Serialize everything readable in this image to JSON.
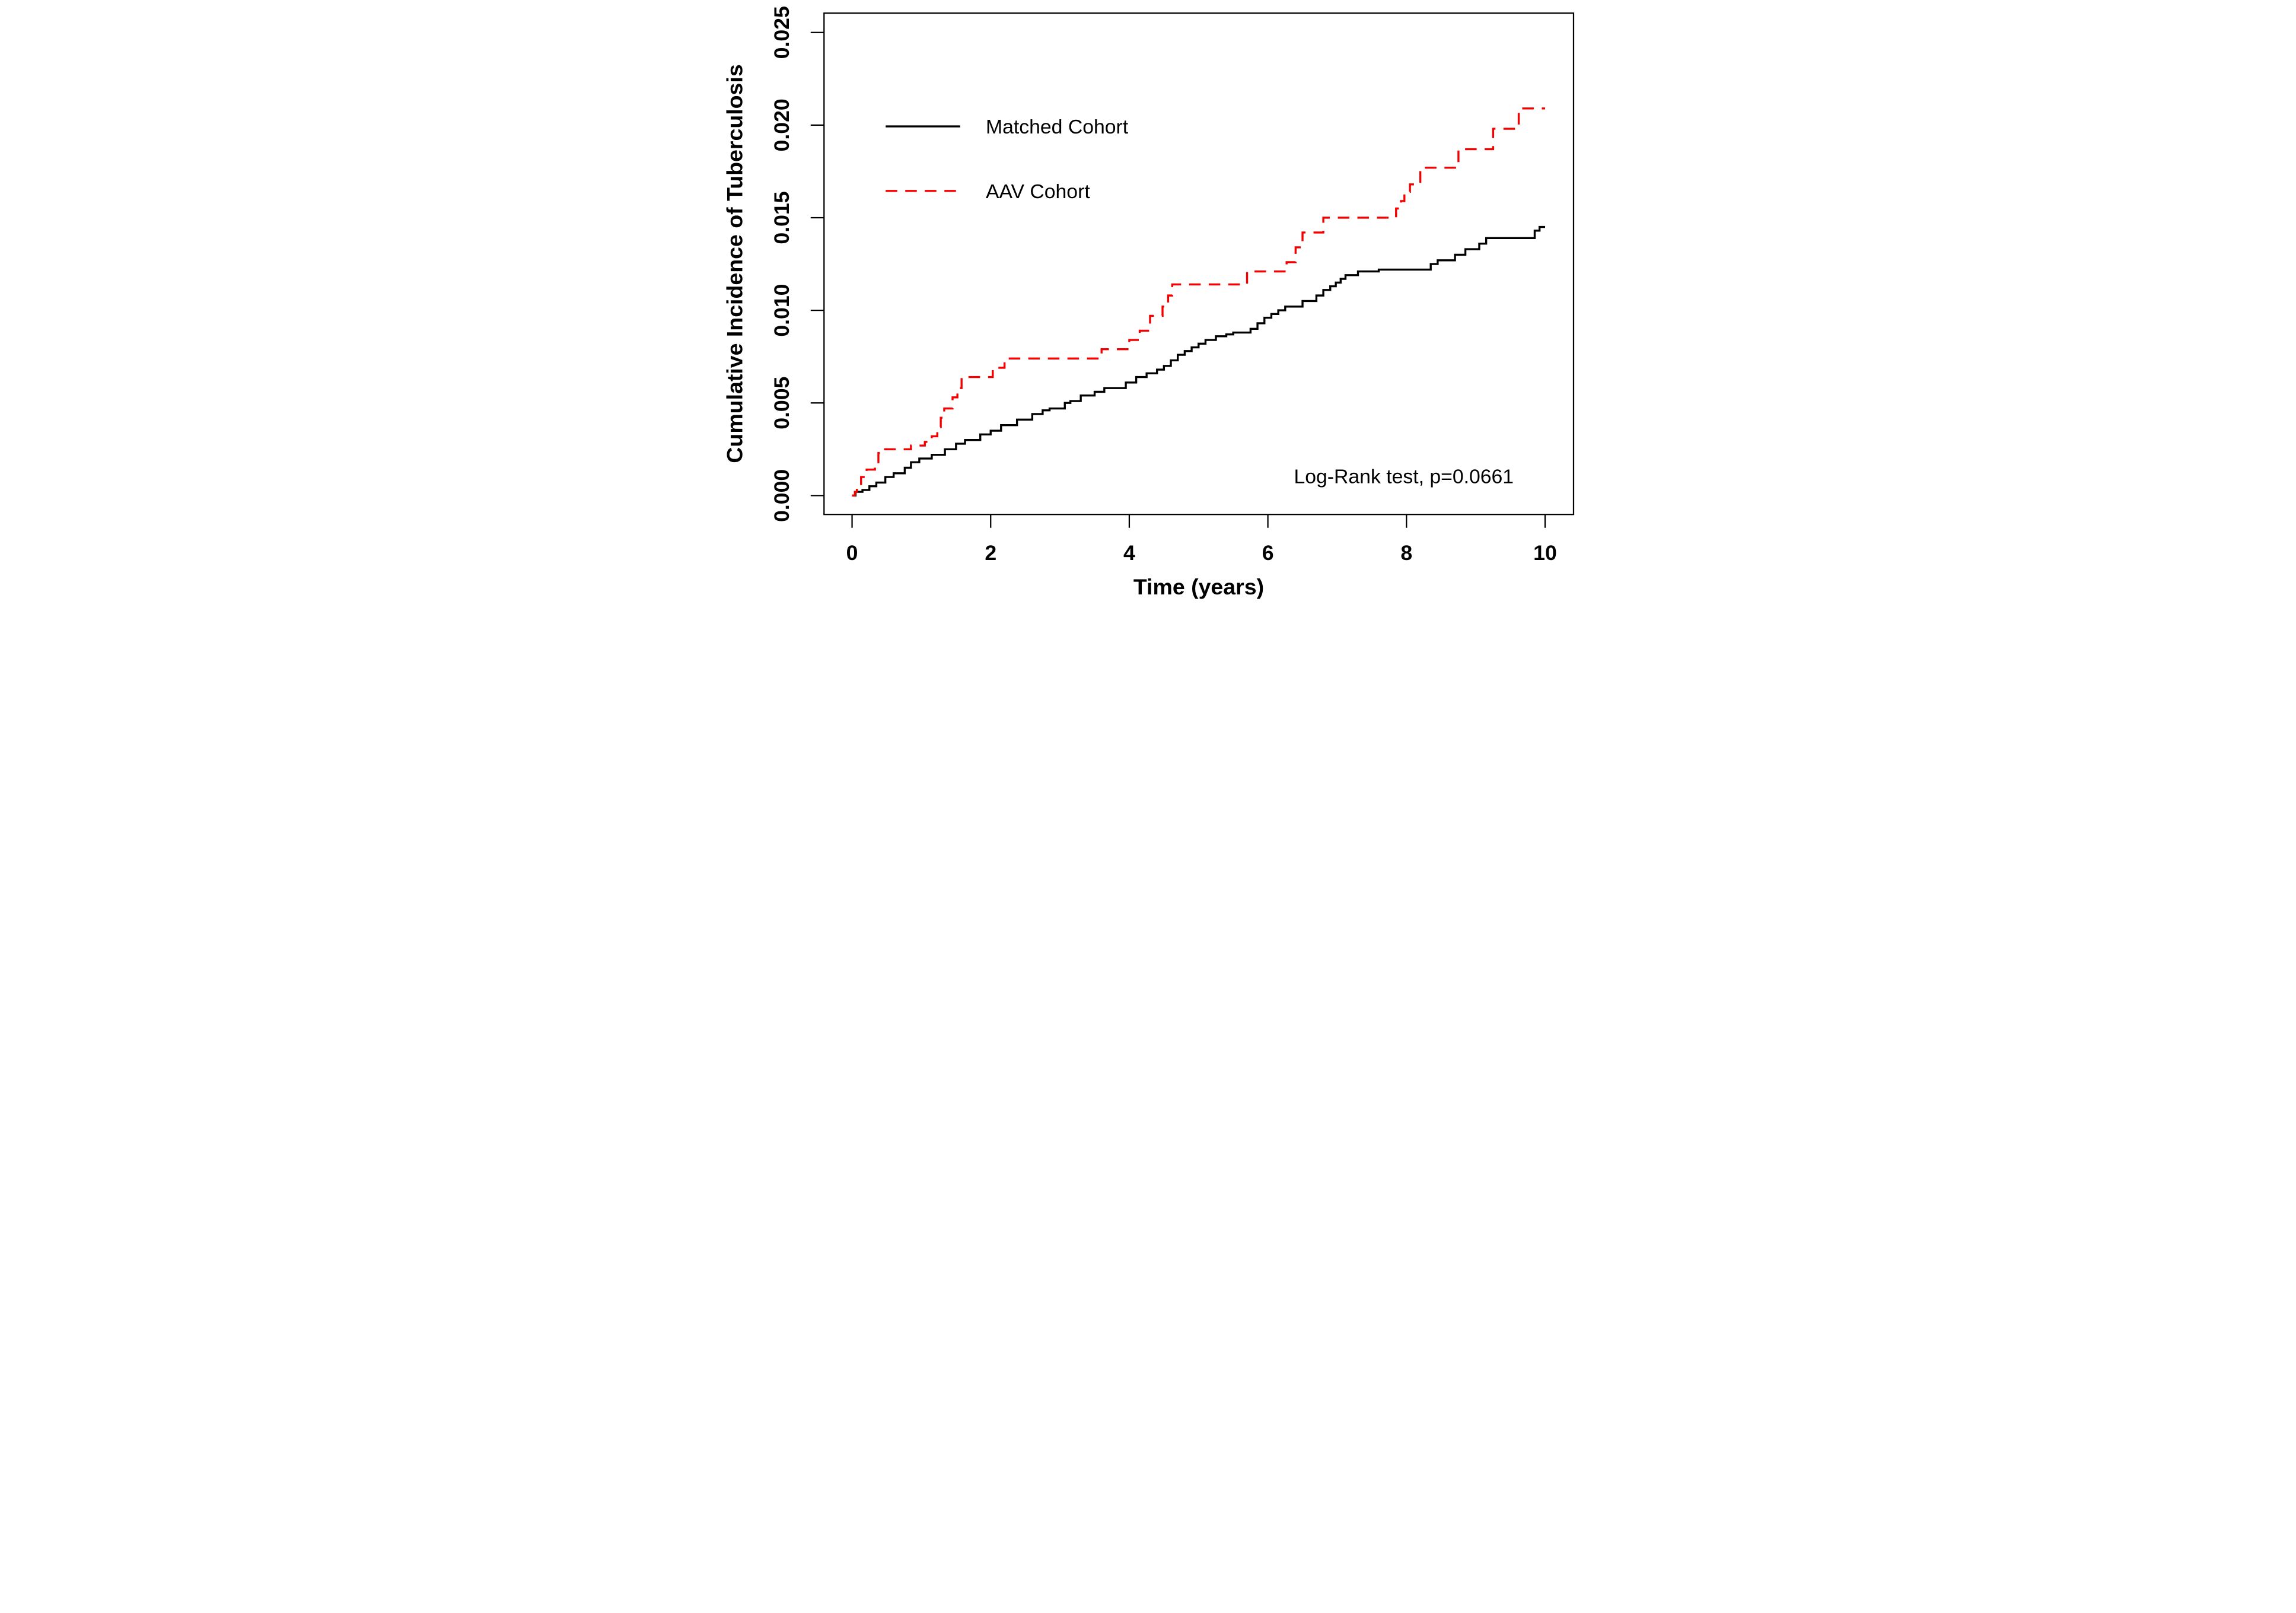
{
  "chart_data": {
    "type": "line",
    "subtype": "step-cumulative-incidence",
    "title": "",
    "xlabel": "Time (years)",
    "ylabel": "Cumulative Incidence of Tuberculosis",
    "xlim": [
      0,
      10
    ],
    "ylim": [
      0,
      0.025
    ],
    "grid": false,
    "legend_position": "upper-left-inside",
    "annotation": "Log-Rank test, p=0.0661",
    "x_ticks": {
      "values": [
        0,
        2,
        4,
        6,
        8,
        10
      ],
      "labels": [
        "0",
        "2",
        "4",
        "6",
        "8",
        "10"
      ]
    },
    "y_ticks": {
      "values": [
        0,
        0.005,
        0.01,
        0.015,
        0.02,
        0.025
      ],
      "labels": [
        "0.000",
        "0.005",
        "0.010",
        "0.015",
        "0.020",
        "0.025"
      ]
    },
    "series": [
      {
        "name": "Matched Cohort",
        "color": "#000000",
        "style": "solid",
        "points": [
          [
            0,
            0
          ],
          [
            0.05,
            0.0002
          ],
          [
            0.15,
            0.0003
          ],
          [
            0.25,
            0.0005
          ],
          [
            0.35,
            0.0007
          ],
          [
            0.48,
            0.001
          ],
          [
            0.6,
            0.0012
          ],
          [
            0.76,
            0.0015
          ],
          [
            0.85,
            0.0018
          ],
          [
            0.97,
            0.002
          ],
          [
            1.15,
            0.0022
          ],
          [
            1.34,
            0.0025
          ],
          [
            1.5,
            0.0028
          ],
          [
            1.63,
            0.003
          ],
          [
            1.85,
            0.0033
          ],
          [
            2.0,
            0.0035
          ],
          [
            2.15,
            0.0038
          ],
          [
            2.38,
            0.0041
          ],
          [
            2.6,
            0.0044
          ],
          [
            2.75,
            0.0046
          ],
          [
            2.85,
            0.0047
          ],
          [
            3.07,
            0.005
          ],
          [
            3.15,
            0.0051
          ],
          [
            3.3,
            0.0054
          ],
          [
            3.5,
            0.0056
          ],
          [
            3.64,
            0.0058
          ],
          [
            3.95,
            0.0061
          ],
          [
            4.1,
            0.0064
          ],
          [
            4.25,
            0.0066
          ],
          [
            4.4,
            0.0068
          ],
          [
            4.5,
            0.007
          ],
          [
            4.6,
            0.0073
          ],
          [
            4.7,
            0.0076
          ],
          [
            4.8,
            0.0078
          ],
          [
            4.9,
            0.008
          ],
          [
            5.0,
            0.0082
          ],
          [
            5.1,
            0.0084
          ],
          [
            5.25,
            0.0086
          ],
          [
            5.4,
            0.0087
          ],
          [
            5.5,
            0.0088
          ],
          [
            5.75,
            0.009
          ],
          [
            5.85,
            0.0093
          ],
          [
            5.95,
            0.0096
          ],
          [
            6.05,
            0.0098
          ],
          [
            6.15,
            0.01
          ],
          [
            6.25,
            0.0102
          ],
          [
            6.5,
            0.0105
          ],
          [
            6.7,
            0.0108
          ],
          [
            6.8,
            0.0111
          ],
          [
            6.9,
            0.0113
          ],
          [
            6.98,
            0.0115
          ],
          [
            7.05,
            0.0117
          ],
          [
            7.12,
            0.0119
          ],
          [
            7.3,
            0.0121
          ],
          [
            7.6,
            0.0122
          ],
          [
            8.35,
            0.0125
          ],
          [
            8.45,
            0.0127
          ],
          [
            8.7,
            0.013
          ],
          [
            8.85,
            0.0133
          ],
          [
            9.05,
            0.0136
          ],
          [
            9.15,
            0.0139
          ],
          [
            9.85,
            0.0143
          ],
          [
            9.92,
            0.0145
          ],
          [
            10,
            0.0145
          ]
        ]
      },
      {
        "name": "AAV Cohort",
        "color": "#F40000",
        "style": "dashed",
        "points": [
          [
            0,
            0
          ],
          [
            0.04,
            0.0002
          ],
          [
            0.07,
            0.0005
          ],
          [
            0.13,
            0.001
          ],
          [
            0.21,
            0.0014
          ],
          [
            0.33,
            0.0018
          ],
          [
            0.38,
            0.0023
          ],
          [
            0.46,
            0.0025
          ],
          [
            0.85,
            0.0027
          ],
          [
            1.05,
            0.0029
          ],
          [
            1.15,
            0.0032
          ],
          [
            1.23,
            0.0037
          ],
          [
            1.28,
            0.0042
          ],
          [
            1.33,
            0.0047
          ],
          [
            1.45,
            0.0053
          ],
          [
            1.52,
            0.0058
          ],
          [
            1.58,
            0.0064
          ],
          [
            2.03,
            0.0069
          ],
          [
            2.2,
            0.0074
          ],
          [
            3.6,
            0.0079
          ],
          [
            4.0,
            0.0084
          ],
          [
            4.15,
            0.0089
          ],
          [
            4.3,
            0.0097
          ],
          [
            4.48,
            0.0102
          ],
          [
            4.56,
            0.0108
          ],
          [
            4.62,
            0.0114
          ],
          [
            5.7,
            0.0121
          ],
          [
            6.27,
            0.0126
          ],
          [
            6.4,
            0.0134
          ],
          [
            6.5,
            0.0142
          ],
          [
            6.8,
            0.015
          ],
          [
            7.85,
            0.0155
          ],
          [
            7.92,
            0.0159
          ],
          [
            7.97,
            0.0164
          ],
          [
            8.05,
            0.0168
          ],
          [
            8.2,
            0.0177
          ],
          [
            8.75,
            0.0187
          ],
          [
            9.25,
            0.0198
          ],
          [
            9.62,
            0.0209
          ],
          [
            10,
            0.0209
          ]
        ]
      }
    ]
  },
  "colors": {
    "background": "#FFFFFF",
    "axis": "#000000",
    "matched_cohort": "#000000",
    "aav_cohort": "#F40000"
  }
}
